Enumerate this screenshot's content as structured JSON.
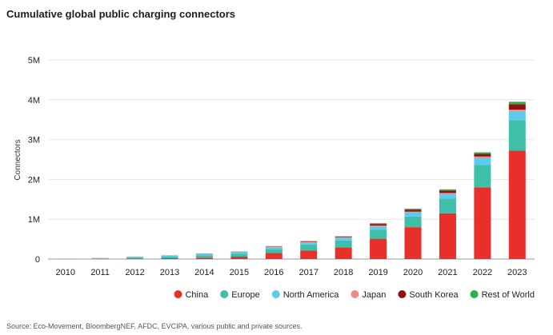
{
  "chart_data": {
    "type": "bar",
    "stacked": true,
    "title": "Cumulative global public charging connectors",
    "xlabel": "",
    "ylabel": "Connectors",
    "ylim": [
      0,
      5000000
    ],
    "yticks": [
      0,
      1000000,
      2000000,
      3000000,
      4000000,
      5000000
    ],
    "ytick_labels": [
      "0",
      "1M",
      "2M",
      "3M",
      "4M",
      "5M"
    ],
    "grid": true,
    "legend_position": "bottom-right",
    "categories": [
      "2010",
      "2011",
      "2012",
      "2013",
      "2014",
      "2015",
      "2016",
      "2017",
      "2018",
      "2019",
      "2020",
      "2021",
      "2022",
      "2023"
    ],
    "series": [
      {
        "name": "China",
        "color": "#e8302a",
        "values": [
          2000,
          5000,
          10000,
          20000,
          35000,
          60000,
          150000,
          210000,
          290000,
          510000,
          800000,
          1150000,
          1800000,
          2720000
        ]
      },
      {
        "name": "Europe",
        "color": "#3fbfa8",
        "values": [
          5000,
          12000,
          25000,
          38000,
          60000,
          75000,
          105000,
          155000,
          175000,
          230000,
          270000,
          365000,
          560000,
          770000
        ]
      },
      {
        "name": "North America",
        "color": "#5ccbef",
        "values": [
          2000,
          8000,
          17000,
          22000,
          30000,
          35000,
          42000,
          50000,
          60000,
          80000,
          100000,
          120000,
          190000,
          230000
        ]
      },
      {
        "name": "Japan",
        "color": "#f08b84",
        "values": [
          500,
          3000,
          6000,
          8000,
          10000,
          12000,
          15000,
          17000,
          18000,
          20000,
          20000,
          25000,
          25000,
          30000
        ]
      },
      {
        "name": "South Korea",
        "color": "#8e1212",
        "values": [
          200,
          500,
          1000,
          2000,
          3000,
          4000,
          6000,
          10000,
          15000,
          40000,
          50000,
          60000,
          65000,
          140000
        ]
      },
      {
        "name": "Rest of World",
        "color": "#2bb04a",
        "values": [
          300,
          500,
          1000,
          2000,
          3000,
          4000,
          8000,
          10000,
          14000,
          20000,
          25000,
          30000,
          40000,
          60000
        ]
      }
    ]
  },
  "source_note": "Source: Eco-Movement, BloombergNEF, AFDC, EVCIPA, various public and private sources."
}
